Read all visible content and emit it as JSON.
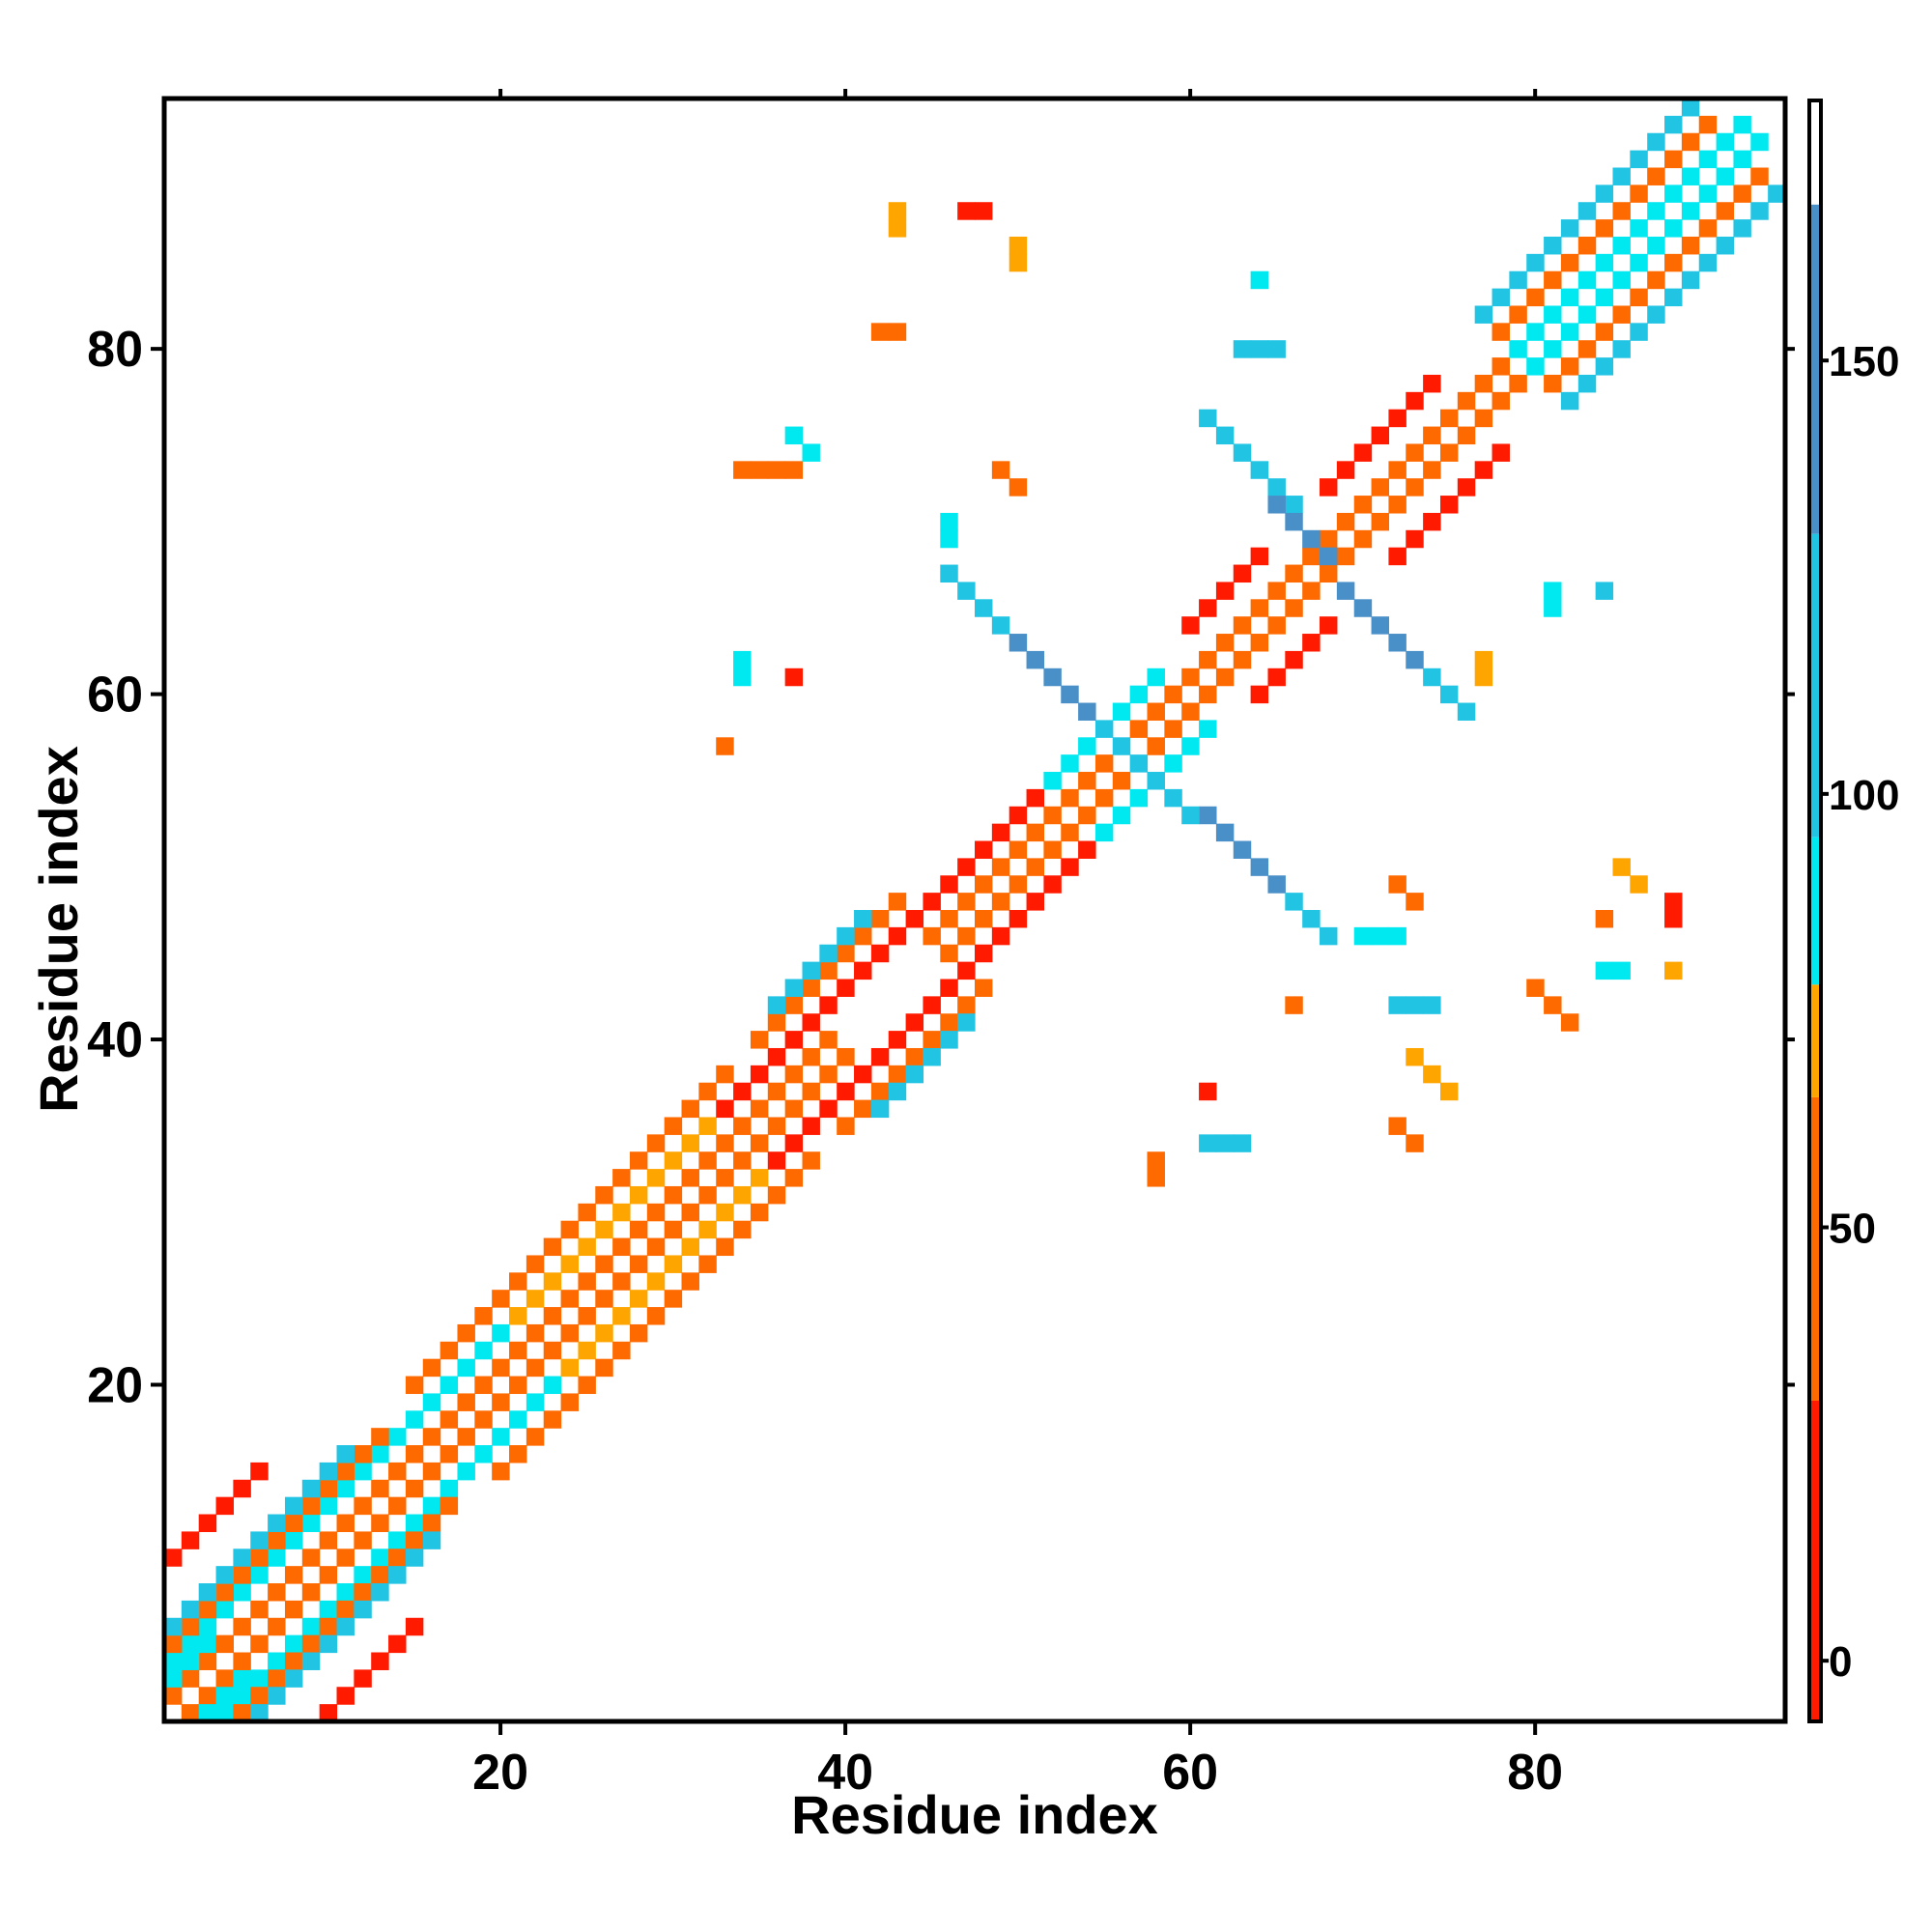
{
  "chart_data": {
    "type": "heatmap",
    "title": "",
    "xlabel": "Residue index",
    "ylabel": "Residue index",
    "xlim": [
      1,
      94
    ],
    "ylim": [
      1,
      94
    ],
    "xticks": [
      20,
      40,
      60,
      80
    ],
    "yticks": [
      20,
      40,
      60,
      80
    ],
    "colorbar": {
      "ticks": [
        0,
        50,
        100,
        150
      ],
      "range": [
        -7,
        180
      ],
      "bands": [
        {
          "from": -7,
          "to": 30,
          "color": "#ff1a00"
        },
        {
          "from": 30,
          "to": 65,
          "color": "#ff6a00"
        },
        {
          "from": 65,
          "to": 78,
          "color": "#ffa500"
        },
        {
          "from": 78,
          "to": 95,
          "color": "#00e8f0"
        },
        {
          "from": 95,
          "to": 130,
          "color": "#22c4e4"
        },
        {
          "from": 130,
          "to": 168,
          "color": "#4a90c8"
        },
        {
          "from": 168,
          "to": 180,
          "color": "#ffffff"
        }
      ]
    },
    "legend": "colorbar-right",
    "grid": false,
    "value_colors": {
      "R": {
        "value": 10,
        "color": "#ff1a00"
      },
      "O": {
        "value": 45,
        "color": "#ff6a00"
      },
      "Y": {
        "value": 72,
        "color": "#ffa500"
      },
      "C": {
        "value": 88,
        "color": "#00e8f0"
      },
      "T": {
        "value": 115,
        "color": "#22c4e4"
      },
      "B": {
        "value": 150,
        "color": "#4a90c8"
      }
    },
    "cells": [
      {
        "x": [
          2,
          4
        ],
        "y": [
          1,
          3
        ],
        "v": "O"
      },
      {
        "x": [
          1,
          3
        ],
        "y": [
          2,
          4
        ],
        "v": "O"
      },
      {
        "x": [
          3,
          5
        ],
        "y": [
          1,
          3
        ],
        "v": "C"
      },
      {
        "x": [
          1,
          3
        ],
        "y": [
          3,
          5
        ],
        "v": "C"
      },
      {
        "x": [
          2,
          18
        ],
        "y": [
          1,
          17
        ],
        "v": "O"
      },
      {
        "x": [
          1,
          17
        ],
        "y": [
          2,
          18
        ],
        "v": "O"
      },
      {
        "x": [
          4,
          18
        ],
        "y": [
          1,
          15
        ],
        "v": "C"
      },
      {
        "x": [
          1,
          15
        ],
        "y": [
          4,
          18
        ],
        "v": "C"
      },
      {
        "x": [
          5,
          17
        ],
        "y": [
          1,
          13
        ],
        "v": "O"
      },
      {
        "x": [
          1,
          13
        ],
        "y": [
          5,
          17
        ],
        "v": "O"
      },
      {
        "x": [
          6,
          16
        ],
        "y": [
          1,
          11
        ],
        "v": "T"
      },
      {
        "x": [
          1,
          11
        ],
        "y": [
          6,
          16
        ],
        "v": "T"
      },
      {
        "x": [
          10,
          15
        ],
        "y": [
          1,
          6
        ],
        "v": "R"
      },
      {
        "x": [
          1,
          6
        ],
        "y": [
          10,
          15
        ],
        "v": "R"
      },
      {
        "x": [
          18,
          40
        ],
        "y": [
          17,
          39
        ],
        "v": "O"
      },
      {
        "x": [
          17,
          39
        ],
        "y": [
          18,
          40
        ],
        "v": "O"
      },
      {
        "x": [
          19,
          40
        ],
        "y": [
          16,
          37
        ],
        "v": "C"
      },
      {
        "x": [
          16,
          37
        ],
        "y": [
          19,
          40
        ],
        "v": "C"
      },
      {
        "x": [
          20,
          38
        ],
        "y": [
          15,
          33
        ],
        "v": "O"
      },
      {
        "x": [
          15,
          33
        ],
        "y": [
          20,
          38
        ],
        "v": "O"
      },
      {
        "x": [
          24,
          36
        ],
        "y": [
          21,
          33
        ],
        "v": "Y"
      },
      {
        "x": [
          21,
          33
        ],
        "y": [
          24,
          36
        ],
        "v": "Y"
      },
      {
        "x": [
          36,
          48
        ],
        "y": [
          33,
          45
        ],
        "v": "R"
      },
      {
        "x": [
          33,
          45
        ],
        "y": [
          36,
          48
        ],
        "v": "R"
      },
      {
        "x": [
          40,
          48
        ],
        "y": [
          35,
          43
        ],
        "v": "O"
      },
      {
        "x": [
          35,
          43
        ],
        "y": [
          40,
          48
        ],
        "v": "O"
      },
      {
        "x": [
          42,
          47
        ],
        "y": [
          36,
          41
        ],
        "v": "T"
      },
      {
        "x": [
          36,
          41
        ],
        "y": [
          42,
          47
        ],
        "v": "T"
      },
      {
        "x": [
          46,
          55
        ],
        "y": [
          45,
          54
        ],
        "v": "O"
      },
      {
        "x": [
          45,
          54
        ],
        "y": [
          46,
          55
        ],
        "v": "O"
      },
      {
        "x": [
          48,
          55
        ],
        "y": [
          45,
          52
        ],
        "v": "R"
      },
      {
        "x": [
          45,
          52
        ],
        "y": [
          48,
          55
        ],
        "v": "R"
      },
      {
        "x": [
          54,
          62
        ],
        "y": [
          53,
          61
        ],
        "v": "O"
      },
      {
        "x": [
          53,
          61
        ],
        "y": [
          54,
          62
        ],
        "v": "O"
      },
      {
        "x": [
          55,
          61
        ],
        "y": [
          52,
          58
        ],
        "v": "C"
      },
      {
        "x": [
          52,
          58
        ],
        "y": [
          55,
          61
        ],
        "v": "C"
      },
      {
        "x": [
          62,
          70
        ],
        "y": [
          61,
          69
        ],
        "v": "O"
      },
      {
        "x": [
          61,
          69
        ],
        "y": [
          62,
          70
        ],
        "v": "O"
      },
      {
        "x": [
          64,
          68
        ],
        "y": [
          60,
          64
        ],
        "v": "R"
      },
      {
        "x": [
          60,
          64
        ],
        "y": [
          64,
          68
        ],
        "v": "R"
      },
      {
        "x": [
          70,
          80
        ],
        "y": [
          69,
          79
        ],
        "v": "O"
      },
      {
        "x": [
          69,
          79
        ],
        "y": [
          70,
          80
        ],
        "v": "O"
      },
      {
        "x": [
          72,
          78
        ],
        "y": [
          68,
          74
        ],
        "v": "R"
      },
      {
        "x": [
          68,
          74
        ],
        "y": [
          72,
          78
        ],
        "v": "R"
      },
      {
        "x": [
          80,
          93
        ],
        "y": [
          79,
          92
        ],
        "v": "C"
      },
      {
        "x": [
          79,
          92
        ],
        "y": [
          80,
          93
        ],
        "v": "C"
      },
      {
        "x": [
          81,
          93
        ],
        "y": [
          78,
          90
        ],
        "v": "O"
      },
      {
        "x": [
          78,
          90
        ],
        "y": [
          81,
          93
        ],
        "v": "O"
      },
      {
        "x": [
          82,
          94
        ],
        "y": [
          77,
          89
        ],
        "v": "T"
      },
      {
        "x": [
          77,
          89
        ],
        "y": [
          82,
          94
        ],
        "v": "T"
      },
      {
        "x": [
          49,
          55
        ],
        "y": [
          64,
          58
        ],
        "v": "B"
      },
      {
        "x": [
          46,
          49
        ],
        "y": [
          67,
          64
        ],
        "v": "T"
      },
      {
        "x": [
          61,
          66
        ],
        "y": [
          76,
          71
        ],
        "v": "T"
      },
      {
        "x": [
          65,
          68
        ],
        "y": [
          71,
          68
        ],
        "v": "B"
      },
      {
        "x": [
          61,
          66
        ],
        "y": [
          53,
          48
        ],
        "v": "B"
      },
      {
        "x": [
          66,
          68
        ],
        "y": [
          48,
          46
        ],
        "v": "T"
      },
      {
        "x": [
          69,
          74
        ],
        "y": [
          66,
          61
        ],
        "v": "B"
      },
      {
        "x": [
          74,
          76
        ],
        "y": [
          61,
          59
        ],
        "v": "T"
      },
      {
        "x": [
          55,
          60
        ],
        "y": [
          58,
          53
        ],
        "v": "T"
      },
      {
        "x": [
          34,
          37
        ],
        "y": [
          73,
          73
        ],
        "v": "O"
      },
      {
        "x": [
          37,
          38
        ],
        "y": [
          75,
          74
        ],
        "v": "C"
      },
      {
        "x": [
          42,
          43
        ],
        "y": [
          81,
          81
        ],
        "v": "O"
      },
      {
        "x": [
          47,
          48
        ],
        "y": [
          88,
          88
        ],
        "v": "R"
      },
      {
        "x": [
          43,
          43
        ],
        "y": [
          88,
          87
        ],
        "v": "Y"
      },
      {
        "x": [
          50,
          50
        ],
        "y": [
          86,
          85
        ],
        "v": "Y"
      },
      {
        "x": [
          34,
          34
        ],
        "y": [
          62,
          61
        ],
        "v": "C"
      },
      {
        "x": [
          37,
          37
        ],
        "y": [
          61,
          61
        ],
        "v": "R"
      },
      {
        "x": [
          33,
          33
        ],
        "y": [
          57,
          57
        ],
        "v": "O"
      },
      {
        "x": [
          46,
          46
        ],
        "y": [
          70,
          69
        ],
        "v": "C"
      },
      {
        "x": [
          49,
          50
        ],
        "y": [
          73,
          72
        ],
        "v": "O"
      },
      {
        "x": [
          61,
          63
        ],
        "y": [
          34,
          34
        ],
        "v": "T"
      },
      {
        "x": [
          58,
          58
        ],
        "y": [
          33,
          32
        ],
        "v": "O"
      },
      {
        "x": [
          61,
          61
        ],
        "y": [
          37,
          37
        ],
        "v": "R"
      },
      {
        "x": [
          73,
          74
        ],
        "y": [
          39,
          37
        ],
        "v": "Y"
      },
      {
        "x": [
          72,
          73
        ],
        "y": [
          35,
          34
        ],
        "v": "O"
      },
      {
        "x": [
          70,
          72
        ],
        "y": [
          46,
          46
        ],
        "v": "C"
      },
      {
        "x": [
          72,
          73
        ],
        "y": [
          49,
          48
        ],
        "v": "O"
      },
      {
        "x": [
          80,
          82
        ],
        "y": [
          43,
          42
        ],
        "v": "O"
      },
      {
        "x": [
          85,
          86
        ],
        "y": [
          50,
          49
        ],
        "v": "Y"
      },
      {
        "x": [
          88,
          88
        ],
        "y": [
          48,
          47
        ],
        "v": "R"
      },
      {
        "x": [
          84,
          85
        ],
        "y": [
          44,
          44
        ],
        "v": "C"
      },
      {
        "x": [
          88,
          88
        ],
        "y": [
          44,
          44
        ],
        "v": "Y"
      },
      {
        "x": [
          66,
          66
        ],
        "y": [
          42,
          42
        ],
        "v": "O"
      },
      {
        "x": [
          72,
          74
        ],
        "y": [
          42,
          42
        ],
        "v": "T"
      },
      {
        "x": [
          84,
          84
        ],
        "y": [
          47,
          47
        ],
        "v": "O"
      },
      {
        "x": [
          81,
          81
        ],
        "y": [
          66,
          65
        ],
        "v": "C"
      },
      {
        "x": [
          84,
          84
        ],
        "y": [
          66,
          66
        ],
        "v": "T"
      },
      {
        "x": [
          63,
          65
        ],
        "y": [
          80,
          80
        ],
        "v": "T"
      },
      {
        "x": [
          64,
          64
        ],
        "y": [
          84,
          84
        ],
        "v": "C"
      },
      {
        "x": [
          77,
          77
        ],
        "y": [
          62,
          61
        ],
        "v": "Y"
      }
    ]
  }
}
